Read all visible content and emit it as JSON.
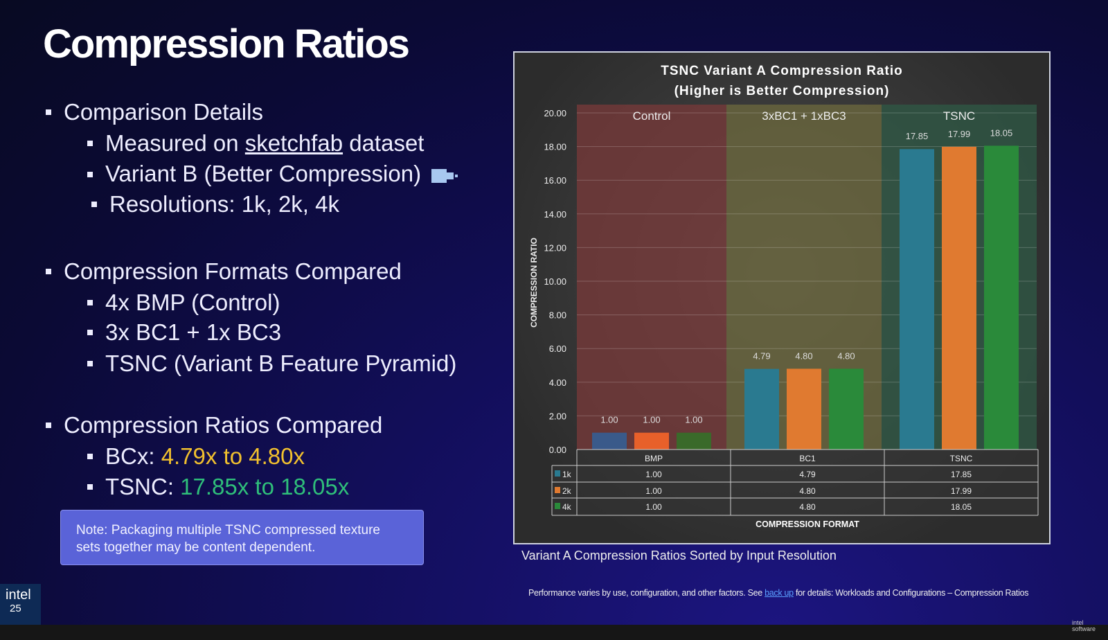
{
  "slide": {
    "title": "Compression Ratios",
    "bullets": {
      "comparison": "Comparison Details",
      "measured_pre": "Measured on ",
      "measured_link": "sketchfab",
      "measured_post": " dataset",
      "variant": "Variant B (Better Compression)",
      "resolutions": "Resolutions: 1k, 2k, 4k",
      "formats": "Compression Formats Compared",
      "f1": "4x BMP (Control)",
      "f2": "3x BC1 + 1x BC3",
      "f3": "TSNC (Variant B Feature Pyramid)",
      "ratios": "Compression Ratios Compared",
      "bcx_label": "BCx: ",
      "bcx_value": "4.79x to 4.80x",
      "tsnc_label": "TSNC: ",
      "tsnc_value": "17.85x to 18.05x"
    },
    "note": "Note: Packaging multiple TSNC compressed texture sets together may be content dependent.",
    "caption": "Variant A Compression Ratios Sorted by Input Resolution",
    "disclaimer_pre": "Performance varies by use, configuration, and other factors. See ",
    "disclaimer_link": "back up",
    "disclaimer_post": " for details: Workloads and Configurations – Compression Ratios",
    "logo": "intel",
    "logo_num": "25",
    "corner_logo": "intel software"
  },
  "chart_data": {
    "type": "bar",
    "title": "TSNC Variant A Compression Ratio",
    "subtitle": "(Higher is Better Compression)",
    "ylabel": "COMPRESSION RATIO",
    "xlabel": "COMPRESSION FORMAT",
    "ylim": [
      0,
      20
    ],
    "yticks": [
      "0.00",
      "2.00",
      "4.00",
      "6.00",
      "8.00",
      "10.00",
      "12.00",
      "14.00",
      "16.00",
      "18.00",
      "20.00"
    ],
    "grid": true,
    "categories": [
      "BMP",
      "BC1",
      "TSNC"
    ],
    "groups": [
      "Control",
      "3xBC1 + 1xBC3",
      "TSNC"
    ],
    "group_colors": [
      "#7a3a3a",
      "#6e6a3e",
      "#2f5a45"
    ],
    "series": [
      {
        "name": "1k",
        "color": "#2a7a90",
        "values": [
          1.0,
          4.79,
          17.85
        ]
      },
      {
        "name": "2k",
        "color": "#e07a30",
        "values": [
          1.0,
          4.8,
          17.99
        ]
      },
      {
        "name": "4k",
        "color": "#2a8a3a",
        "values": [
          1.0,
          4.8,
          18.05
        ]
      }
    ],
    "control_colors": [
      "#3a5a8a",
      "#e8602a",
      "#3a6a2a"
    ],
    "table": true
  },
  "accent_colors": {
    "yellow": "#f2c12e",
    "green": "#2fbf7a",
    "note": "#5a63d8"
  }
}
